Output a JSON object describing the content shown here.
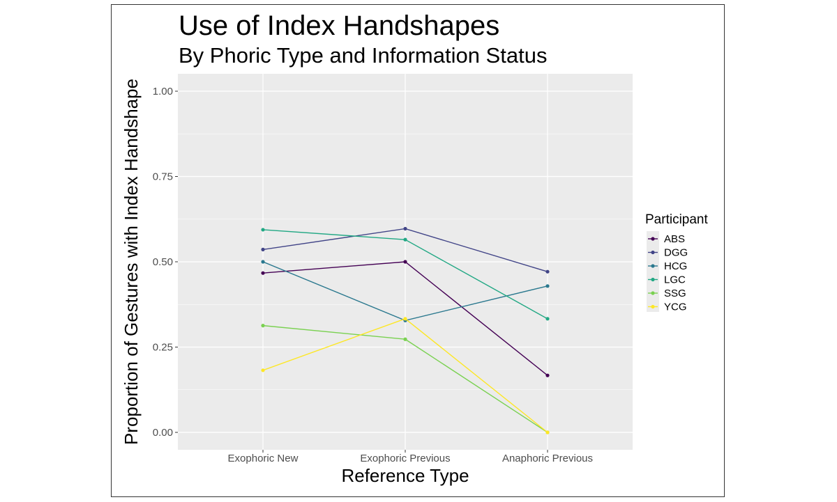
{
  "chart_data": {
    "type": "line",
    "title": "Use of Index Handshapes",
    "subtitle": "By Phoric Type and Information Status",
    "xlabel": "Reference Type",
    "ylabel": "Proportion of Gestures with Index Handshape",
    "categories": [
      "Exophoric New",
      "Exophoric Previous",
      "Anaphoric Previous"
    ],
    "ylim": [
      0,
      1
    ],
    "yticks": [
      0,
      0.25,
      0.5,
      0.75,
      1
    ],
    "ytick_labels": [
      "0.00",
      "0.25",
      "0.50",
      "0.75",
      "1.00"
    ],
    "grid": true,
    "legend": {
      "title": "Participant",
      "position": "right"
    },
    "series": [
      {
        "name": "ABS",
        "color": "#440154",
        "values": [
          0.467,
          0.5,
          0.167
        ]
      },
      {
        "name": "DGG",
        "color": "#414487",
        "values": [
          0.536,
          0.597,
          0.471
        ]
      },
      {
        "name": "HCG",
        "color": "#2A788E",
        "values": [
          0.5,
          0.328,
          0.429
        ]
      },
      {
        "name": "LGC",
        "color": "#22A884",
        "values": [
          0.594,
          0.565,
          0.333
        ]
      },
      {
        "name": "SSG",
        "color": "#7AD151",
        "values": [
          0.313,
          0.273,
          0.0
        ]
      },
      {
        "name": "YCG",
        "color": "#FDE725",
        "values": [
          0.182,
          0.333,
          0.0
        ]
      }
    ]
  }
}
